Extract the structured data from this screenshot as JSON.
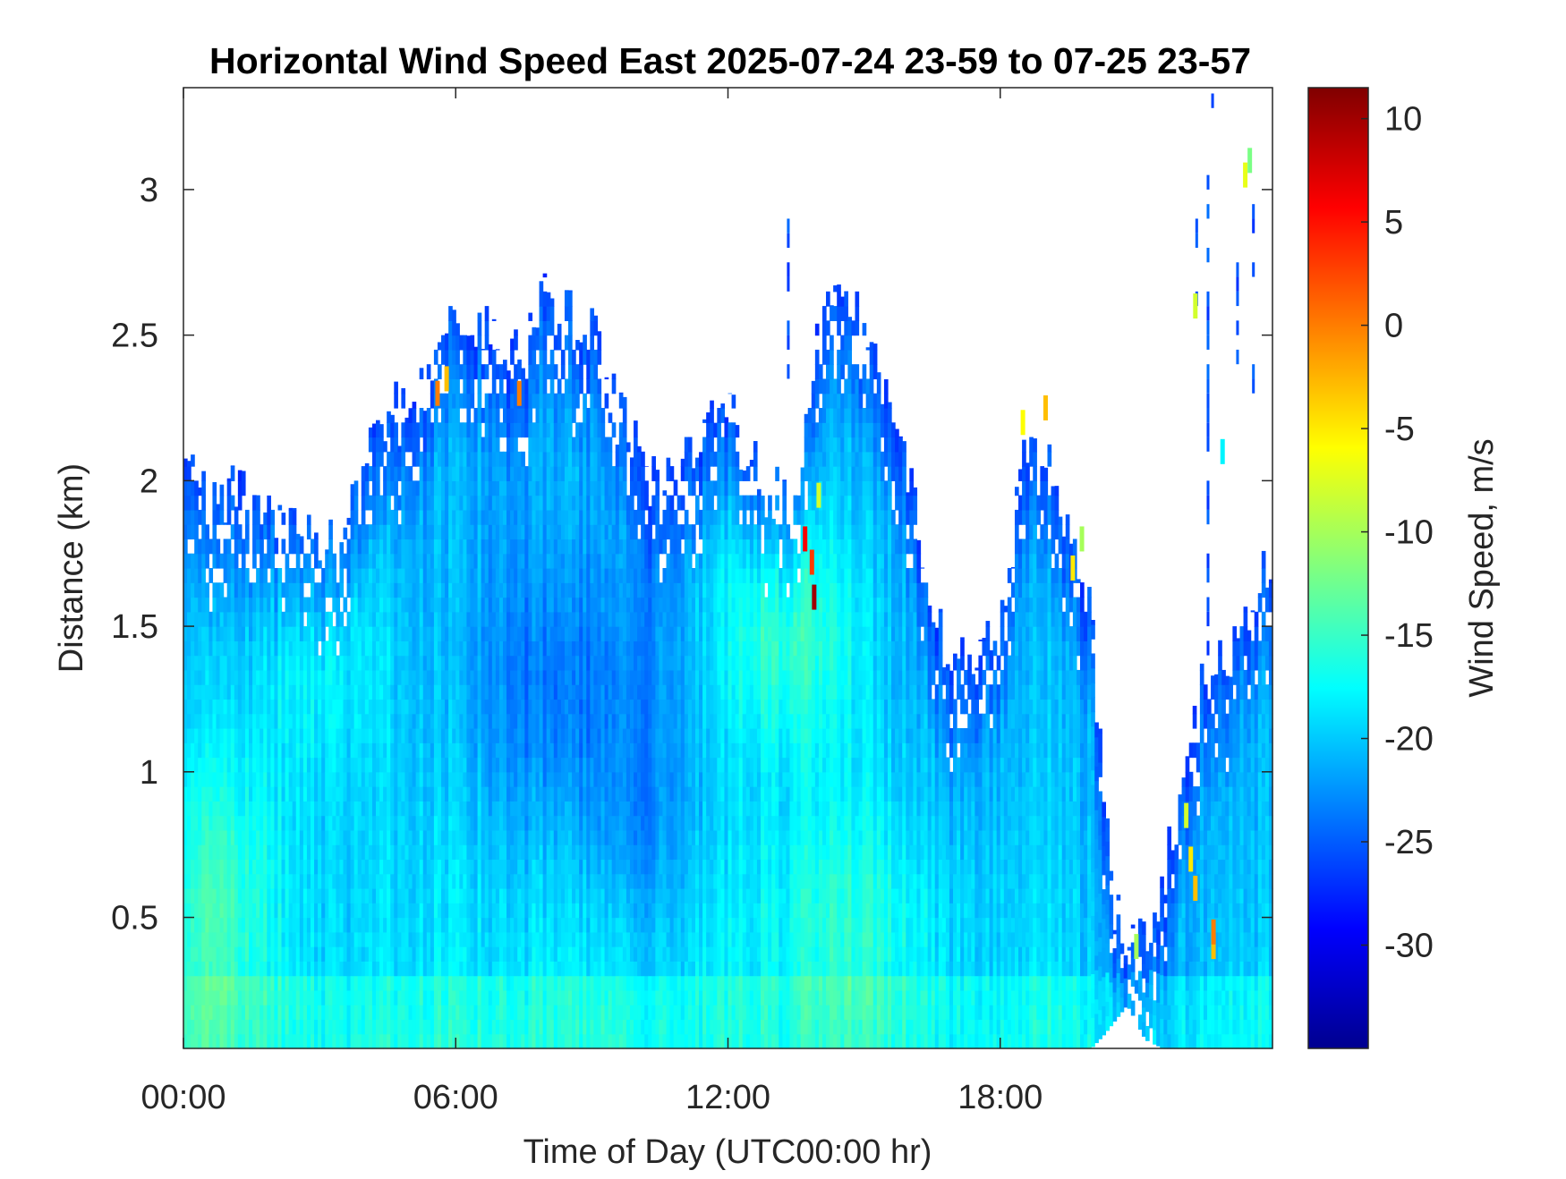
{
  "chart_data": {
    "type": "heatmap",
    "title": "Horizontal Wind Speed East 2025-07-24 23-59 to 07-25 23-57",
    "xlabel": "Time of Day (UTC00:00 hr)",
    "ylabel": "Distance (km)",
    "colorbar_label": "Wind Speed, m/s",
    "xlim": [
      0,
      24
    ],
    "ylim": [
      0.05,
      3.35
    ],
    "clim": [
      -35,
      11.5
    ],
    "colormap": "jet",
    "background_color": "#ffffff",
    "x_ticks": [
      {
        "value": 0,
        "label": "00:00"
      },
      {
        "value": 6,
        "label": "06:00"
      },
      {
        "value": 12,
        "label": "12:00"
      },
      {
        "value": 18,
        "label": "18:00"
      }
    ],
    "y_ticks": [
      {
        "value": 0.5,
        "label": "0.5"
      },
      {
        "value": 1,
        "label": "1"
      },
      {
        "value": 1.5,
        "label": "1.5"
      },
      {
        "value": 2,
        "label": "2"
      },
      {
        "value": 2.5,
        "label": "2.5"
      },
      {
        "value": 3,
        "label": "3"
      }
    ],
    "colorbar_ticks": [
      {
        "value": 10,
        "label": "10"
      },
      {
        "value": 5,
        "label": "5"
      },
      {
        "value": 0,
        "label": "0"
      },
      {
        "value": -5,
        "label": "-5"
      },
      {
        "value": -10,
        "label": "-10"
      },
      {
        "value": -15,
        "label": "-15"
      },
      {
        "value": -20,
        "label": "-20"
      },
      {
        "value": -25,
        "label": "-25"
      },
      {
        "value": -30,
        "label": "-30"
      }
    ],
    "data_top_km": [
      [
        0.0,
        2.05
      ],
      [
        0.5,
        1.95
      ],
      [
        1.0,
        1.95
      ],
      [
        1.5,
        1.95
      ],
      [
        2.0,
        1.9
      ],
      [
        2.5,
        1.85
      ],
      [
        3.0,
        1.75
      ],
      [
        3.5,
        1.8
      ],
      [
        4.0,
        2.05
      ],
      [
        4.5,
        2.25
      ],
      [
        5.0,
        2.2
      ],
      [
        5.5,
        2.4
      ],
      [
        6.0,
        2.6
      ],
      [
        6.5,
        2.55
      ],
      [
        7.0,
        2.5
      ],
      [
        7.5,
        2.45
      ],
      [
        8.0,
        2.65
      ],
      [
        8.5,
        2.6
      ],
      [
        9.0,
        2.5
      ],
      [
        9.5,
        2.25
      ],
      [
        10.0,
        2.1
      ],
      [
        10.5,
        1.95
      ],
      [
        11.0,
        2.05
      ],
      [
        11.5,
        2.15
      ],
      [
        12.0,
        2.25
      ],
      [
        12.5,
        2.05
      ],
      [
        13.0,
        1.95
      ],
      [
        13.5,
        1.9
      ],
      [
        14.0,
        2.5
      ],
      [
        14.5,
        2.75
      ],
      [
        15.0,
        2.5
      ],
      [
        15.5,
        2.3
      ],
      [
        16.0,
        2.05
      ],
      [
        16.5,
        1.5
      ],
      [
        17.0,
        1.4
      ],
      [
        17.5,
        1.35
      ],
      [
        18.0,
        1.5
      ],
      [
        18.5,
        2.05
      ],
      [
        19.0,
        2.1
      ],
      [
        19.5,
        1.85
      ],
      [
        20.0,
        1.5
      ],
      [
        20.5,
        0.5
      ],
      [
        21.0,
        0.35
      ],
      [
        21.5,
        0.6
      ],
      [
        22.0,
        0.9
      ],
      [
        22.5,
        1.35
      ],
      [
        23.0,
        1.4
      ],
      [
        23.5,
        1.6
      ],
      [
        24.0,
        1.75
      ]
    ],
    "data_bottom_km": [
      [
        0.0,
        0.05
      ],
      [
        19.5,
        0.05
      ],
      [
        20.0,
        0.05
      ],
      [
        20.3,
        0.1
      ],
      [
        20.8,
        0.2
      ],
      [
        21.2,
        0.08
      ],
      [
        21.6,
        0.05
      ],
      [
        24.0,
        0.05
      ]
    ],
    "speed_features": [
      {
        "t": 0.8,
        "z": 0.55,
        "st": 1.4,
        "sz": 0.6,
        "dv": 5
      },
      {
        "t": 3.0,
        "z": 1.4,
        "st": 1.6,
        "sz": 0.45,
        "dv": 3
      },
      {
        "t": 8.5,
        "z": 1.25,
        "st": 2.2,
        "sz": 0.5,
        "dv": -4
      },
      {
        "t": 10.0,
        "z": 0.75,
        "st": 1.2,
        "sz": 0.3,
        "dv": -2
      },
      {
        "t": 13.2,
        "z": 1.5,
        "st": 1.6,
        "sz": 0.45,
        "dv": 6
      },
      {
        "t": 14.5,
        "z": 0.5,
        "st": 2.5,
        "sz": 0.4,
        "dv": 3
      }
    ],
    "hot_spots": [
      {
        "t": 5.6,
        "z": 2.3,
        "v": 0
      },
      {
        "t": 5.8,
        "z": 2.35,
        "v": -3
      },
      {
        "t": 7.4,
        "z": 2.3,
        "v": 0
      },
      {
        "t": 13.7,
        "z": 1.8,
        "v": 6
      },
      {
        "t": 13.9,
        "z": 1.6,
        "v": 10
      },
      {
        "t": 13.85,
        "z": 1.72,
        "v": 3
      },
      {
        "t": 14.0,
        "z": 1.95,
        "v": -8
      },
      {
        "t": 18.5,
        "z": 2.2,
        "v": -6
      },
      {
        "t": 19.0,
        "z": 2.25,
        "v": -3
      },
      {
        "t": 19.6,
        "z": 1.7,
        "v": -5
      },
      {
        "t": 19.8,
        "z": 1.8,
        "v": -10
      },
      {
        "t": 21.0,
        "z": 0.4,
        "v": -10
      },
      {
        "t": 22.2,
        "z": 0.7,
        "v": -5
      },
      {
        "t": 22.1,
        "z": 0.85,
        "v": -8
      },
      {
        "t": 22.3,
        "z": 0.6,
        "v": -3
      },
      {
        "t": 22.3,
        "z": 2.6,
        "v": -8
      },
      {
        "t": 22.7,
        "z": 0.4,
        "v": -3
      },
      {
        "t": 22.7,
        "z": 0.45,
        "v": 0
      },
      {
        "t": 22.9,
        "z": 2.1,
        "v": -18
      },
      {
        "t": 23.4,
        "z": 3.05,
        "v": -7
      },
      {
        "t": 23.5,
        "z": 3.1,
        "v": -12
      }
    ],
    "isolated_streaks": [
      {
        "t": 13.3,
        "z0": 2.3,
        "z1": 2.85
      },
      {
        "t": 22.3,
        "z0": 2.55,
        "z1": 2.9
      },
      {
        "t": 22.55,
        "z0": 1.4,
        "z1": 3.05
      },
      {
        "t": 23.2,
        "z0": 2.4,
        "z1": 2.7
      },
      {
        "t": 23.55,
        "z0": 2.3,
        "z1": 2.9
      },
      {
        "t": 22.65,
        "z0": 3.28,
        "z1": 3.33
      }
    ]
  }
}
